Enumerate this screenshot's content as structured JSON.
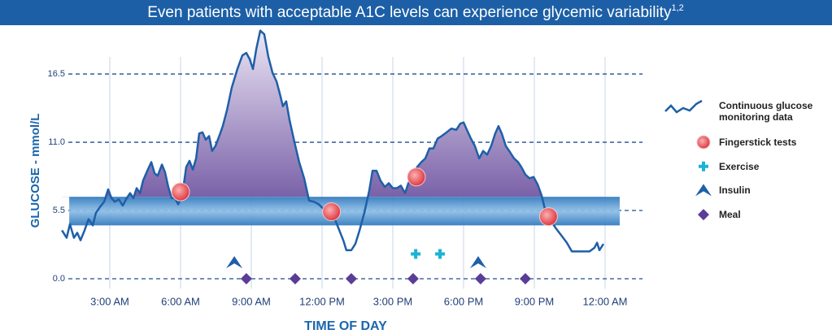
{
  "chart_data": {
    "type": "line",
    "title": "Even patients with acceptable A1C levels can experience glycemic variability",
    "title_superscript": "1,2",
    "x_label": "TIME OF DAY",
    "y_label": "GLUCOSE - mmol/L",
    "xlim": [
      0,
      25.5
    ],
    "ylim": [
      -0.8,
      20.5
    ],
    "xticks": [
      {
        "value": 3,
        "label": "3:00 AM"
      },
      {
        "value": 6,
        "label": "6:00 AM"
      },
      {
        "value": 9,
        "label": "9:00 AM"
      },
      {
        "value": 12,
        "label": "12:00 PM"
      },
      {
        "value": 15,
        "label": "3:00 PM"
      },
      {
        "value": 18,
        "label": "6:00 PM"
      },
      {
        "value": 21,
        "label": "9:00 PM"
      },
      {
        "value": 24,
        "label": "12:00 AM"
      }
    ],
    "yticks": [
      {
        "value": 0,
        "label": "0.0"
      },
      5.5,
      {
        "value": 11,
        "label": "11.0"
      },
      16.5
    ],
    "grid": true,
    "range_band": {
      "x": [
        1.28,
        24.62
      ],
      "y": [
        4.3,
        6.6
      ]
    },
    "series": [
      {
        "name": "Continuous glucose monitoring data",
        "color": "#1f5fa8",
        "x": [
          0.97,
          1.17,
          1.31,
          1.48,
          1.62,
          1.76,
          1.93,
          2.1,
          2.28,
          2.41,
          2.59,
          2.76,
          2.93,
          3.07,
          3.21,
          3.38,
          3.55,
          3.72,
          3.86,
          4.0,
          4.14,
          4.28,
          4.41,
          4.59,
          4.76,
          4.9,
          5.03,
          5.21,
          5.34,
          5.48,
          5.62,
          5.76,
          5.9,
          6.07,
          6.24,
          6.38,
          6.52,
          6.66,
          6.79,
          6.93,
          7.07,
          7.21,
          7.34,
          7.48,
          7.66,
          7.79,
          7.97,
          8.17,
          8.41,
          8.62,
          8.79,
          8.93,
          9.07,
          9.21,
          9.38,
          9.55,
          9.72,
          9.9,
          10.07,
          10.21,
          10.34,
          10.48,
          10.62,
          10.83,
          11.03,
          11.24,
          11.45,
          11.66,
          11.86,
          12.07,
          12.28,
          12.48,
          12.69,
          12.9,
          13.03,
          13.24,
          13.41,
          13.59,
          13.79,
          14.0,
          14.14,
          14.31,
          14.48,
          14.66,
          14.83,
          15.0,
          15.17,
          15.34,
          15.52,
          15.66,
          15.86,
          16.03,
          16.21,
          16.38,
          16.55,
          16.72,
          16.9,
          17.07,
          17.28,
          17.48,
          17.69,
          17.86,
          18.0,
          18.14,
          18.31,
          18.48,
          18.66,
          18.83,
          19.0,
          19.17,
          19.34,
          19.48,
          19.62,
          19.79,
          19.97,
          20.14,
          20.31,
          20.45,
          20.62,
          20.79,
          20.97,
          21.14,
          21.31,
          21.45,
          21.66,
          21.9,
          22.14,
          22.38,
          22.59,
          22.83,
          23.1,
          23.34,
          23.55,
          23.66,
          23.76,
          23.93
        ],
        "values": [
          3.9,
          3.3,
          4.4,
          3.3,
          3.7,
          3.1,
          3.9,
          4.8,
          4.3,
          5.3,
          5.8,
          6.2,
          7.2,
          6.5,
          6.2,
          6.4,
          5.9,
          6.5,
          6.9,
          6.5,
          7.3,
          6.9,
          7.9,
          8.7,
          9.4,
          8.5,
          8.3,
          9.2,
          8.6,
          7.4,
          6.5,
          6.5,
          6.0,
          6.7,
          9.0,
          9.5,
          8.8,
          9.7,
          11.7,
          11.8,
          11.2,
          11.5,
          10.3,
          10.7,
          11.6,
          12.3,
          13.6,
          15.4,
          16.9,
          18.0,
          18.2,
          17.7,
          16.9,
          18.5,
          20.0,
          19.7,
          17.9,
          16.6,
          15.9,
          14.9,
          13.9,
          14.3,
          12.8,
          11.0,
          9.4,
          8.1,
          6.3,
          6.2,
          6.0,
          5.6,
          5.3,
          5.1,
          4.1,
          3.1,
          2.3,
          2.3,
          2.8,
          3.9,
          5.3,
          7.1,
          8.7,
          8.7,
          7.9,
          7.4,
          7.7,
          7.3,
          7.3,
          7.5,
          6.9,
          7.7,
          8.4,
          9.0,
          9.4,
          9.7,
          10.5,
          10.5,
          11.3,
          11.5,
          11.8,
          12.1,
          12.0,
          12.5,
          12.6,
          12.0,
          11.3,
          10.7,
          9.7,
          10.3,
          10.0,
          10.7,
          11.7,
          12.3,
          11.7,
          10.7,
          10.2,
          9.7,
          9.4,
          9.0,
          8.4,
          8.1,
          8.2,
          7.6,
          6.7,
          5.6,
          4.8,
          4.1,
          3.5,
          2.9,
          2.2,
          2.2,
          2.2,
          2.2,
          2.5,
          2.9,
          2.3,
          2.8
        ]
      }
    ],
    "markers": [
      {
        "name": "Fingerstick tests",
        "shape": "circle",
        "color": "#e0404a",
        "x": [
          6.0,
          12.4,
          16.0,
          21.6
        ],
        "values": [
          7.0,
          5.4,
          8.2,
          5.0
        ]
      },
      {
        "name": "Exercise",
        "shape": "cross",
        "color": "#1bb3d6",
        "x": [
          15.97,
          17.0
        ],
        "values": [
          2.0,
          2.0
        ]
      },
      {
        "name": "Insulin",
        "shape": "chevron",
        "color": "#1f5fa8",
        "x": [
          8.28,
          18.62
        ],
        "values": [
          1.3,
          1.3
        ]
      },
      {
        "name": "Meal",
        "shape": "diamond",
        "color": "#5a3d97",
        "x": [
          8.79,
          10.86,
          13.24,
          15.86,
          18.72,
          20.62
        ],
        "values": [
          0,
          0,
          0,
          0,
          0,
          0
        ]
      }
    ]
  }
}
